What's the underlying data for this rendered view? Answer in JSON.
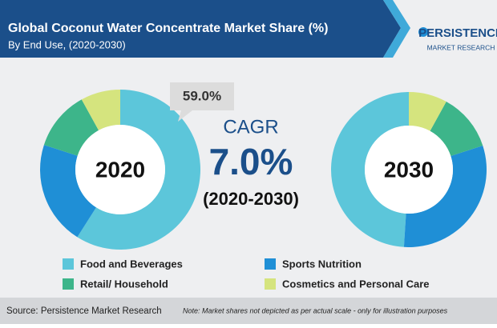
{
  "header": {
    "title": "Global Coconut Water Concentrate Market Share (%)",
    "subtitle": "By End Use, (2020-2030)"
  },
  "logo": {
    "name": "PERSISTENCE",
    "tagline": "MARKET RESEARCH"
  },
  "cagr": {
    "label": "CAGR",
    "value": "7.0%",
    "period": "(2020-2030)"
  },
  "chart_data": [
    {
      "type": "donut",
      "center_label": "2020",
      "direction": "clockwise",
      "categories": [
        "Food and Beverages",
        "Sports Nutrition",
        "Retail/ Household",
        "Cosmetics and Personal Care"
      ],
      "colors": [
        "#5cc6da",
        "#1f8fd6",
        "#3db58a",
        "#d5e47e"
      ],
      "values": [
        59,
        21,
        12,
        8
      ],
      "value_labels": [
        "59.0%",
        null,
        null,
        null
      ]
    },
    {
      "type": "donut",
      "center_label": "2030",
      "direction": "counterclockwise",
      "categories": [
        "Food and Beverages",
        "Sports Nutrition",
        "Retail/ Household",
        "Cosmetics and Personal Care"
      ],
      "colors": [
        "#5cc6da",
        "#1f8fd6",
        "#3db58a",
        "#d5e47e"
      ],
      "values": [
        49,
        31,
        12,
        8
      ]
    }
  ],
  "footer": {
    "source": "Source: Persistence Market Research",
    "note": "Note: Market shares not depicted as per actual scale - only for illustration purposes"
  }
}
